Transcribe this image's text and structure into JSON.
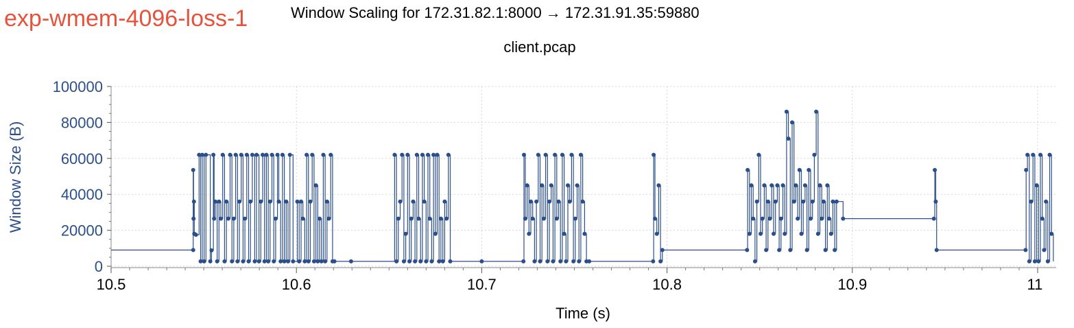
{
  "header": {
    "experiment_label": "exp-wmem-4096-loss-1",
    "title": "Window Scaling for 172.31.82.1:8000 → 172.31.91.35:59880",
    "subtitle": "client.pcap"
  },
  "colors": {
    "experiment_label": "#e5533d",
    "series": "#2b4f8a",
    "y_axis_text": "#2b4f8a",
    "grid": "#d6d6d6"
  },
  "chart_data": {
    "type": "line",
    "title": "Window Scaling for 172.31.82.1:8000 → 172.31.91.35:59880",
    "subtitle": "client.pcap",
    "xlabel": "Time (s)",
    "ylabel": "Window Size (B)",
    "xlim": [
      10.5,
      11.01
    ],
    "ylim": [
      0,
      100000
    ],
    "x_ticks": [
      10.5,
      10.6,
      10.7,
      10.8,
      10.9,
      11
    ],
    "x_tick_labels": [
      "10.5",
      "10.6",
      "10.7",
      "10.8",
      "10.9",
      "11"
    ],
    "y_ticks": [
      0,
      20000,
      40000,
      60000,
      80000,
      100000
    ],
    "y_tick_labels": [
      "0",
      "20000",
      "40000",
      "60000",
      "80000",
      "100000"
    ],
    "grid": true,
    "step": true,
    "series": [
      {
        "values": [
          [
            10.5,
            9000
          ],
          [
            10.5443,
            9000
          ],
          [
            10.5443,
            53500
          ],
          [
            10.5445,
            26500
          ],
          [
            10.5447,
            36000
          ],
          [
            10.5449,
            18000
          ],
          [
            10.5458,
            17500
          ],
          [
            10.5475,
            62000
          ],
          [
            10.5483,
            2700
          ],
          [
            10.5492,
            62000
          ],
          [
            10.5502,
            2700
          ],
          [
            10.5512,
            62000
          ],
          [
            10.5535,
            2700
          ],
          [
            10.5542,
            8800
          ],
          [
            10.5552,
            62000
          ],
          [
            10.5556,
            26500
          ],
          [
            10.5562,
            36000
          ],
          [
            10.5572,
            2700
          ],
          [
            10.5582,
            36000
          ],
          [
            10.5592,
            26500
          ],
          [
            10.5602,
            62000
          ],
          [
            10.5612,
            2700
          ],
          [
            10.5622,
            36000
          ],
          [
            10.5632,
            26500
          ],
          [
            10.5642,
            62000
          ],
          [
            10.5652,
            2700
          ],
          [
            10.5662,
            26500
          ],
          [
            10.5672,
            62000
          ],
          [
            10.5682,
            2700
          ],
          [
            10.5692,
            36000
          ],
          [
            10.5702,
            62000
          ],
          [
            10.5712,
            2700
          ],
          [
            10.5722,
            26500
          ],
          [
            10.5732,
            62000
          ],
          [
            10.5742,
            2700
          ],
          [
            10.5752,
            36000
          ],
          [
            10.5762,
            62000
          ],
          [
            10.5775,
            2700
          ],
          [
            10.5785,
            62000
          ],
          [
            10.5798,
            2700
          ],
          [
            10.5808,
            36000
          ],
          [
            10.5818,
            62000
          ],
          [
            10.5828,
            2700
          ],
          [
            10.5838,
            62000
          ],
          [
            10.5848,
            2700
          ],
          [
            10.5858,
            36000
          ],
          [
            10.5868,
            62000
          ],
          [
            10.5878,
            2700
          ],
          [
            10.5888,
            26500
          ],
          [
            10.5898,
            62000
          ],
          [
            10.5905,
            36000
          ],
          [
            10.5915,
            2700
          ],
          [
            10.5925,
            62000
          ],
          [
            10.5935,
            2700
          ],
          [
            10.5945,
            36000
          ],
          [
            10.5955,
            2700
          ],
          [
            10.5965,
            62000
          ],
          [
            10.5982,
            2700
          ],
          [
            10.6005,
            36000
          ],
          [
            10.6015,
            2700
          ],
          [
            10.6025,
            36000
          ],
          [
            10.6035,
            26500
          ],
          [
            10.6045,
            2700
          ],
          [
            10.6055,
            62000
          ],
          [
            10.6065,
            2700
          ],
          [
            10.6075,
            36000
          ],
          [
            10.6085,
            62000
          ],
          [
            10.6095,
            2700
          ],
          [
            10.6105,
            45000
          ],
          [
            10.6115,
            2700
          ],
          [
            10.6125,
            26500
          ],
          [
            10.6135,
            2700
          ],
          [
            10.6145,
            62000
          ],
          [
            10.6155,
            2700
          ],
          [
            10.6165,
            36000
          ],
          [
            10.6175,
            26500
          ],
          [
            10.6185,
            62000
          ],
          [
            10.6195,
            2700
          ],
          [
            10.6205,
            2700
          ],
          [
            10.6295,
            2700
          ],
          [
            10.653,
            62000
          ],
          [
            10.654,
            2700
          ],
          [
            10.655,
            26500
          ],
          [
            10.656,
            36000
          ],
          [
            10.657,
            62000
          ],
          [
            10.658,
            2700
          ],
          [
            10.659,
            18000
          ],
          [
            10.66,
            62000
          ],
          [
            10.661,
            2700
          ],
          [
            10.662,
            26500
          ],
          [
            10.663,
            36000
          ],
          [
            10.664,
            2700
          ],
          [
            10.665,
            62000
          ],
          [
            10.666,
            26500
          ],
          [
            10.667,
            2700
          ],
          [
            10.668,
            62000
          ],
          [
            10.669,
            36000
          ],
          [
            10.67,
            2700
          ],
          [
            10.671,
            62000
          ],
          [
            10.672,
            26500
          ],
          [
            10.673,
            2700
          ],
          [
            10.674,
            62000
          ],
          [
            10.675,
            18000
          ],
          [
            10.676,
            62000
          ],
          [
            10.677,
            2700
          ],
          [
            10.678,
            26500
          ],
          [
            10.679,
            2700
          ],
          [
            10.68,
            36000
          ],
          [
            10.681,
            26500
          ],
          [
            10.682,
            62000
          ],
          [
            10.683,
            2700
          ],
          [
            10.7,
            2700
          ],
          [
            10.7225,
            2700
          ],
          [
            10.7228,
            62000
          ],
          [
            10.7235,
            26500
          ],
          [
            10.7245,
            45000
          ],
          [
            10.7255,
            18000
          ],
          [
            10.7265,
            36000
          ],
          [
            10.7275,
            26500
          ],
          [
            10.7285,
            2700
          ],
          [
            10.7295,
            36000
          ],
          [
            10.7305,
            62000
          ],
          [
            10.7315,
            2700
          ],
          [
            10.7325,
            45000
          ],
          [
            10.7335,
            26500
          ],
          [
            10.7345,
            62000
          ],
          [
            10.7355,
            2700
          ],
          [
            10.7365,
            36000
          ],
          [
            10.7375,
            45000
          ],
          [
            10.7385,
            2700
          ],
          [
            10.7395,
            62000
          ],
          [
            10.7405,
            26500
          ],
          [
            10.7415,
            36000
          ],
          [
            10.7425,
            2700
          ],
          [
            10.7435,
            62000
          ],
          [
            10.7445,
            18000
          ],
          [
            10.7455,
            2700
          ],
          [
            10.7465,
            45000
          ],
          [
            10.7475,
            36000
          ],
          [
            10.7485,
            62000
          ],
          [
            10.7495,
            2700
          ],
          [
            10.7505,
            26500
          ],
          [
            10.7515,
            45000
          ],
          [
            10.7525,
            2700
          ],
          [
            10.7535,
            62000
          ],
          [
            10.7545,
            36000
          ],
          [
            10.7555,
            18000
          ],
          [
            10.7565,
            2700
          ],
          [
            10.758,
            2700
          ],
          [
            10.7925,
            2700
          ],
          [
            10.7928,
            62000
          ],
          [
            10.7935,
            26500
          ],
          [
            10.7945,
            18000
          ],
          [
            10.7955,
            45000
          ],
          [
            10.7965,
            2700
          ],
          [
            10.7975,
            9000
          ],
          [
            10.8432,
            9000
          ],
          [
            10.8435,
            53500
          ],
          [
            10.8445,
            18000
          ],
          [
            10.8455,
            45000
          ],
          [
            10.8465,
            26500
          ],
          [
            10.8475,
            2700
          ],
          [
            10.8485,
            36000
          ],
          [
            10.8495,
            62000
          ],
          [
            10.8505,
            18000
          ],
          [
            10.8515,
            26500
          ],
          [
            10.8525,
            45000
          ],
          [
            10.8535,
            9000
          ],
          [
            10.8545,
            36000
          ],
          [
            10.8555,
            26500
          ],
          [
            10.8565,
            45000
          ],
          [
            10.8575,
            18000
          ],
          [
            10.8585,
            36000
          ],
          [
            10.8595,
            45000
          ],
          [
            10.8605,
            9000
          ],
          [
            10.8615,
            26500
          ],
          [
            10.8625,
            45000
          ],
          [
            10.8635,
            18000
          ],
          [
            10.8645,
            86000
          ],
          [
            10.8655,
            71000
          ],
          [
            10.8665,
            9000
          ],
          [
            10.8675,
            80000
          ],
          [
            10.8685,
            36000
          ],
          [
            10.8695,
            45000
          ],
          [
            10.8705,
            26500
          ],
          [
            10.8715,
            53500
          ],
          [
            10.8725,
            18000
          ],
          [
            10.8735,
            36000
          ],
          [
            10.8745,
            45000
          ],
          [
            10.8755,
            9000
          ],
          [
            10.8765,
            53500
          ],
          [
            10.8775,
            26500
          ],
          [
            10.8785,
            36000
          ],
          [
            10.8795,
            62000
          ],
          [
            10.8805,
            86000
          ],
          [
            10.8815,
            18000
          ],
          [
            10.8825,
            45000
          ],
          [
            10.8835,
            26500
          ],
          [
            10.8845,
            36000
          ],
          [
            10.8855,
            9000
          ],
          [
            10.8865,
            45000
          ],
          [
            10.8875,
            26500
          ],
          [
            10.8885,
            18000
          ],
          [
            10.8895,
            36000
          ],
          [
            10.8905,
            9000
          ],
          [
            10.8915,
            36000
          ],
          [
            10.895,
            26500
          ],
          [
            10.944,
            26500
          ],
          [
            10.9445,
            53500
          ],
          [
            10.945,
            36000
          ],
          [
            10.9455,
            9000
          ],
          [
            10.9935,
            9000
          ],
          [
            10.9938,
            53500
          ],
          [
            10.9945,
            62000
          ],
          [
            10.9955,
            2700
          ],
          [
            10.9965,
            36000
          ],
          [
            10.9975,
            62000
          ],
          [
            10.9985,
            2700
          ],
          [
            10.9995,
            45000
          ],
          [
            11.0005,
            2700
          ],
          [
            11.0015,
            62000
          ],
          [
            11.0025,
            26500
          ],
          [
            11.0035,
            9000
          ],
          [
            11.0045,
            36000
          ],
          [
            11.0055,
            2700
          ],
          [
            11.0065,
            62000
          ],
          [
            11.0075,
            18000
          ],
          [
            11.0085,
            2700
          ]
        ]
      }
    ]
  }
}
